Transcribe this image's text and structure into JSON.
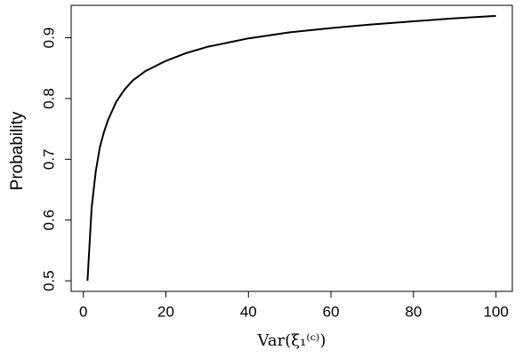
{
  "chart_data": {
    "type": "line",
    "x_label": "Var(ξ₁⁽ᶜ⁾)",
    "y_label": "Probability",
    "x": [
      1,
      2,
      3,
      4,
      5,
      6,
      8,
      10,
      12,
      15,
      20,
      25,
      30,
      40,
      50,
      60,
      70,
      80,
      90,
      100
    ],
    "series": [
      {
        "color": "#000000",
        "values": [
          0.5,
          0.62,
          0.68,
          0.72,
          0.745,
          0.765,
          0.795,
          0.815,
          0.83,
          0.845,
          0.862,
          0.875,
          0.885,
          0.899,
          0.909,
          0.916,
          0.922,
          0.927,
          0.932,
          0.936
        ]
      }
    ],
    "xlim": [
      -2.96,
      103.96
    ],
    "ylim": [
      0.4826,
      0.9534
    ],
    "xticks": [
      0,
      20,
      40,
      60,
      80,
      100
    ],
    "yticks": [
      0.5,
      0.6,
      0.7,
      0.8,
      0.9
    ],
    "grid": false
  }
}
